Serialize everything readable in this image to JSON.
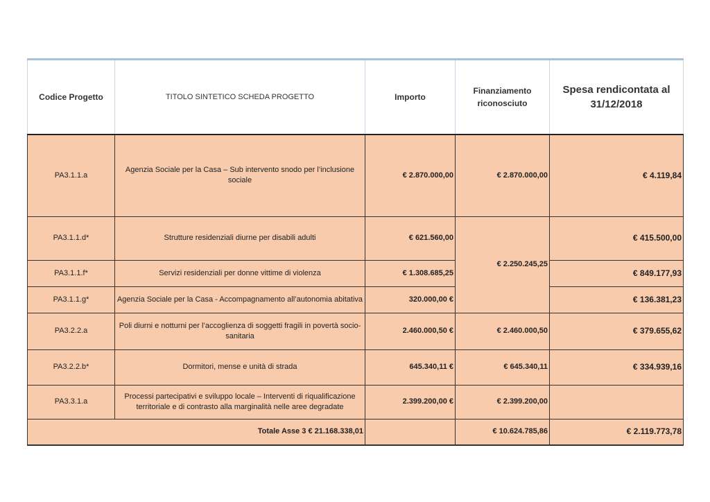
{
  "table": {
    "headers": {
      "code": "Codice Progetto",
      "title": "TITOLO SINTETICO SCHEDA PROGETTO",
      "amount": "Importo",
      "funding": "Finanziamento riconosciuto",
      "spent": "Spesa rendicontata al 31/12/2018"
    },
    "rows": [
      {
        "code": "PA3.1.1.a",
        "title": "Agenzia Sociale per la Casa – Sub intervento snodo per l’inclusione sociale",
        "amount": "€ 2.870.000,00",
        "funding": "€ 2.870.000,00",
        "spent": "€ 4.119,84"
      },
      {
        "code": "PA3.1.1.d*",
        "title": "Strutture residenziali diurne per disabili adulti",
        "amount": "€ 621.560,00",
        "funding": "€ 2.250.245,25",
        "spent": "€ 415.500,00"
      },
      {
        "code": "PA3.1.1.f*",
        "title": "Servizi residenziali per donne vittime di violenza",
        "amount": "€ 1.308.685,25",
        "spent": "€ 849.177,93"
      },
      {
        "code": "PA3.1.1.g*",
        "title": "Agenzia Sociale per la Casa - Accompagnamento all’autonomia abitativa",
        "amount": "320.000,00 €",
        "spent": "€ 136.381,23"
      },
      {
        "code": "PA3.2.2.a",
        "title": "Poli diurni e notturni per l’accoglienza di soggetti fragili in povertà socio- sanitaria",
        "amount": "2.460.000,50 €",
        "funding": "€ 2.460.000,50",
        "spent": "€ 379.655,62"
      },
      {
        "code": "PA3.2.2.b*",
        "title": "Dormitori, mense e unità di strada",
        "amount": "645.340,11 €",
        "funding": "€ 645.340,11",
        "spent": "€ 334.939,16"
      },
      {
        "code": "PA3.3.1.a",
        "title": "Processi partecipativi e sviluppo locale – Interventi di riqualificazione territoriale e di contrasto alla marginalità nelle aree degradate",
        "amount": "2.399.200,00 €",
        "funding": "€ 2.399.200,00",
        "spent": ""
      }
    ],
    "total": {
      "label": "Totale Asse 3 € 21.168.338,01",
      "amount": "",
      "funding": "€ 10.624.785,86",
      "spent": "€ 2.119.773,78"
    }
  }
}
